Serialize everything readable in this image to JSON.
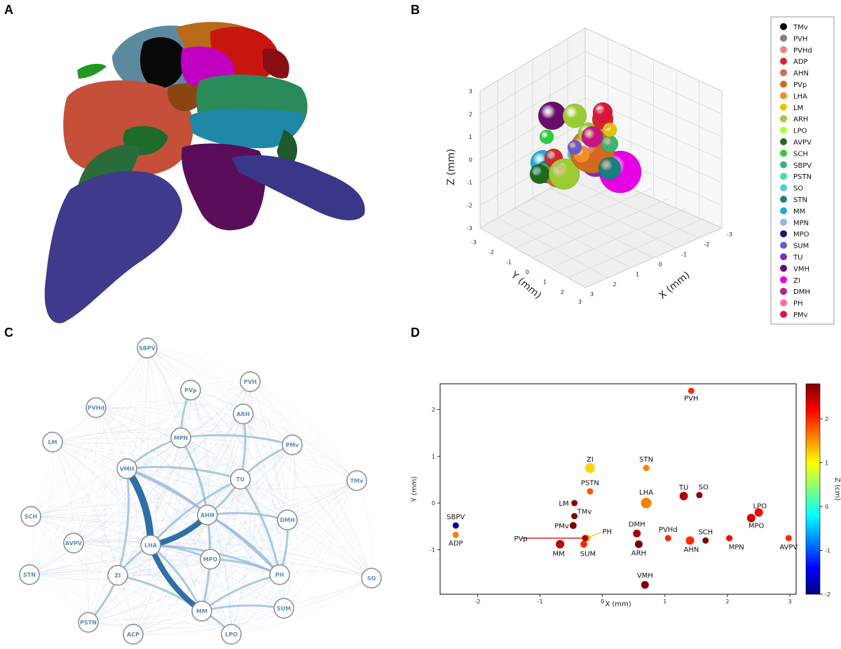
{
  "panels": {
    "a": "A",
    "b": "B",
    "c": "C",
    "d": "D"
  },
  "colors": {
    "TMv": "#000000",
    "PVH": "#7f7f7f",
    "PVHd": "#f08080",
    "ADP": "#d62728",
    "AHN": "#e8604c",
    "PVp": "#d2691e",
    "LHA": "#f28c28",
    "LM": "#e6c200",
    "ARH": "#9acd32",
    "LPO": "#adff2f",
    "AVPV": "#1e6b1e",
    "SCH": "#2ecc40",
    "SBPV": "#3cb371",
    "PSTN": "#40e0a0",
    "SO": "#48d1cc",
    "STN": "#1a7f7f",
    "MM": "#1eaad7",
    "MPN": "#87bde0",
    "MPO": "#191970",
    "SUM": "#6a5acd",
    "TU": "#7b2fbe",
    "VMH": "#6a0d6a",
    "ZI": "#e600e6",
    "DMH": "#c71585",
    "PH": "#ff69b4",
    "PMv": "#dc143c"
  },
  "panel_b": {
    "axes": {
      "x_label": "X (mm)",
      "y_label": "Y (mm)",
      "z_label": "Z (mm)",
      "ticks": [
        "3",
        "2",
        "1",
        "0",
        "-1",
        "-2",
        "-3"
      ],
      "x_ticks": [
        "3",
        "2",
        "1",
        "0",
        "-1",
        "-2",
        "-3"
      ],
      "y_ticks": [
        "-3",
        "-2",
        "-1",
        "0",
        "1",
        "2",
        "3"
      ]
    },
    "legend": [
      "TMv",
      "PVH",
      "PVHd",
      "ADP",
      "AHN",
      "PVp",
      "LHA",
      "LM",
      "ARH",
      "LPO",
      "AVPV",
      "SCH",
      "SBPV",
      "PSTN",
      "SO",
      "STN",
      "MM",
      "MPN",
      "MPO",
      "SUM",
      "TU",
      "VMH",
      "ZI",
      "DMH",
      "PH",
      "PMv"
    ]
  },
  "panel_c": {
    "nodes": [
      "SBPV",
      "PVp",
      "PVH",
      "PVHd",
      "ARH",
      "LM",
      "MPN",
      "PMv",
      "TMv",
      "VMH",
      "TU",
      "SCH",
      "AHN",
      "DMH",
      "AVPV",
      "LHA",
      "MPO",
      "STN",
      "ZI",
      "PH",
      "SO",
      "MM",
      "SUM",
      "PSTN",
      "ACP",
      "LPO"
    ]
  },
  "chart_data": {
    "type": "scatter",
    "xlabel": "X (mm)",
    "ylabel": "Y (mm)",
    "colorbar_label": "Z (cm)",
    "xlim": [
      -2.6,
      3.1
    ],
    "ylim": [
      -1.95,
      2.55
    ],
    "x_ticks": [
      "-2",
      "-1",
      "0",
      "1",
      "2",
      "3"
    ],
    "y_ticks": [
      "2",
      "1",
      "0",
      "-1"
    ],
    "colorbar_ticks": [
      "2",
      "1",
      "0",
      "-1",
      "-2"
    ],
    "colorbar_range": [
      -2,
      2.8
    ],
    "points": [
      {
        "name": "PVH",
        "x": 1.42,
        "y": 2.4,
        "z": 2.0
      },
      {
        "name": "ZI",
        "x": -0.2,
        "y": 0.75,
        "z": 1.2
      },
      {
        "name": "STN",
        "x": 0.7,
        "y": 0.75,
        "z": 1.6
      },
      {
        "name": "PSTN",
        "x": -0.2,
        "y": 0.25,
        "z": 1.8
      },
      {
        "name": "LHA",
        "x": 0.7,
        "y": 0.0,
        "z": 1.6
      },
      {
        "name": "TU",
        "x": 1.3,
        "y": 0.15,
        "z": 2.6
      },
      {
        "name": "SO",
        "x": 1.55,
        "y": 0.17,
        "z": 2.7
      },
      {
        "name": "LM",
        "x": -0.45,
        "y": 0.0,
        "z": 2.7
      },
      {
        "name": "TMv",
        "x": -0.45,
        "y": -0.28,
        "z": 2.8
      },
      {
        "name": "PMv",
        "x": -0.47,
        "y": -0.48,
        "z": 2.8
      },
      {
        "name": "LPO",
        "x": 2.5,
        "y": -0.2,
        "z": 2.2
      },
      {
        "name": "MPO",
        "x": 2.38,
        "y": -0.32,
        "z": 2.4
      },
      {
        "name": "SBPV",
        "x": -2.35,
        "y": -0.48,
        "z": -1.9
      },
      {
        "name": "ADP",
        "x": -2.35,
        "y": -0.68,
        "z": 1.6
      },
      {
        "name": "PH",
        "x": -0.25,
        "y": -0.75,
        "z": 1.4
      },
      {
        "name": "PVp",
        "x": -0.28,
        "y": -0.75,
        "z": 2.6
      },
      {
        "name": "MM",
        "x": -0.68,
        "y": -0.88,
        "z": 2.5
      },
      {
        "name": "SUM",
        "x": -0.3,
        "y": -0.88,
        "z": 2.0
      },
      {
        "name": "DMH",
        "x": 0.55,
        "y": -0.65,
        "z": 2.6
      },
      {
        "name": "ARH",
        "x": 0.58,
        "y": -0.88,
        "z": 2.9
      },
      {
        "name": "PVHd",
        "x": 1.05,
        "y": -0.75,
        "z": 2.0
      },
      {
        "name": "AHN",
        "x": 1.4,
        "y": -0.8,
        "z": 2.0
      },
      {
        "name": "SCH",
        "x": 1.65,
        "y": -0.8,
        "z": 2.9
      },
      {
        "name": "MPN",
        "x": 2.03,
        "y": -0.75,
        "z": 2.2
      },
      {
        "name": "AVPV",
        "x": 2.98,
        "y": -0.75,
        "z": 2.0
      },
      {
        "name": "VMH",
        "x": 0.68,
        "y": -1.75,
        "z": 2.9
      }
    ]
  }
}
